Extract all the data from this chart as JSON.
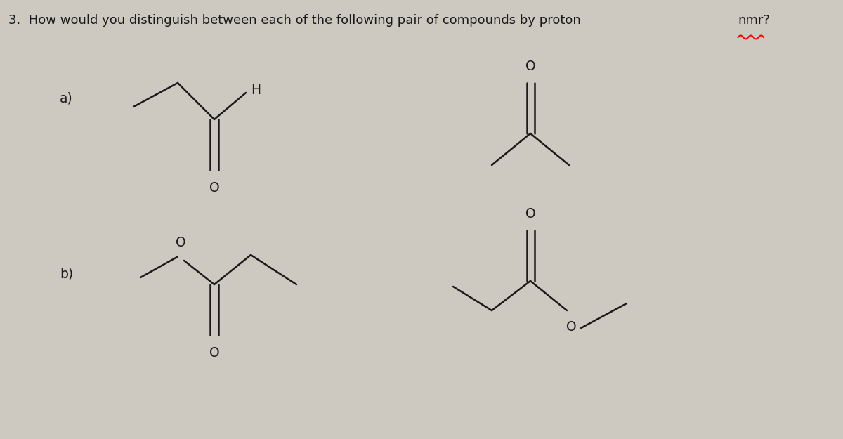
{
  "bg_color": "#cdc9c0",
  "text_color": "#1a1a1a",
  "title": "3.  How would you distinguish between each of the following pair of compounds by proton nmr?",
  "label_a": "a)",
  "label_b": "b)"
}
